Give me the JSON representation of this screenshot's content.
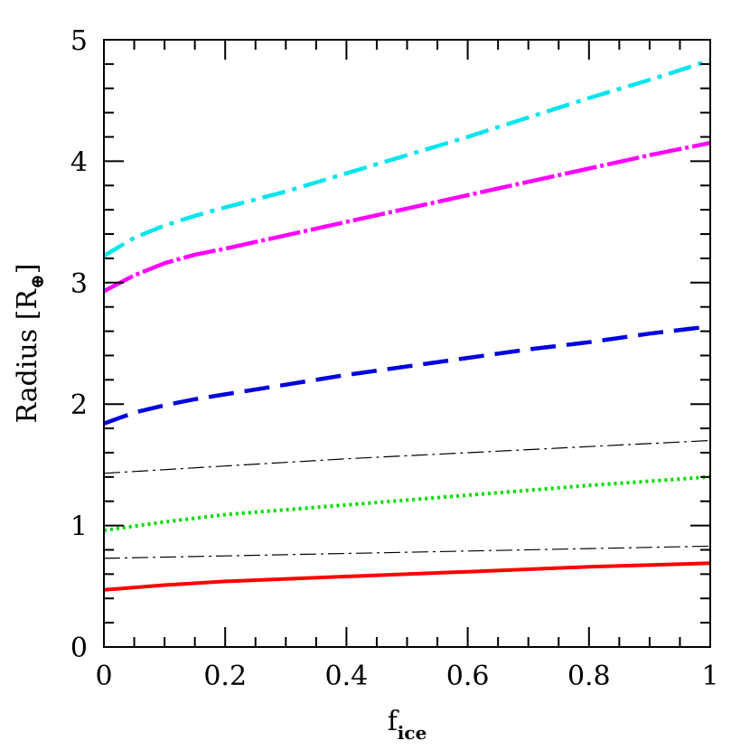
{
  "chart_data": {
    "type": "line",
    "xlabel": "f",
    "xlabel_subscript": "ice",
    "ylabel": "Radius [R",
    "ylabel_symbol": "⊕",
    "ylabel_close": "]",
    "xlim": [
      0,
      1
    ],
    "ylim": [
      0,
      5
    ],
    "xticks": [
      0,
      0.2,
      0.4,
      0.6,
      0.8,
      1
    ],
    "xtick_labels": [
      "0",
      "0.2",
      "0.4",
      "0.6",
      "0.8",
      "1"
    ],
    "yticks": [
      0,
      1,
      2,
      3,
      4,
      5
    ],
    "ytick_labels": [
      "0",
      "1",
      "2",
      "3",
      "4",
      "5"
    ],
    "series": [
      {
        "color": "#ff0000",
        "style": "solid",
        "x": [
          0,
          0.1,
          0.2,
          0.4,
          0.6,
          0.8,
          1.0
        ],
        "y": [
          0.47,
          0.51,
          0.54,
          0.58,
          0.62,
          0.66,
          0.69
        ]
      },
      {
        "color": "#000000",
        "style": "thin-dashdot",
        "x": [
          0,
          0.2,
          0.4,
          0.6,
          0.8,
          1.0
        ],
        "y": [
          0.73,
          0.75,
          0.77,
          0.79,
          0.81,
          0.83
        ]
      },
      {
        "color": "#00dd00",
        "style": "dotted",
        "x": [
          0,
          0.1,
          0.2,
          0.4,
          0.6,
          0.8,
          1.0
        ],
        "y": [
          0.96,
          1.03,
          1.09,
          1.17,
          1.25,
          1.33,
          1.4
        ]
      },
      {
        "color": "#000000",
        "style": "thin-dashdot",
        "x": [
          0,
          0.2,
          0.4,
          0.6,
          0.8,
          1.0
        ],
        "y": [
          1.43,
          1.49,
          1.55,
          1.6,
          1.65,
          1.7
        ]
      },
      {
        "color": "#0000dd",
        "style": "long-dash",
        "x": [
          0,
          0.05,
          0.1,
          0.15,
          0.2,
          0.3,
          0.4,
          0.5,
          0.6,
          0.7,
          0.8,
          0.9,
          1.0
        ],
        "y": [
          1.84,
          1.93,
          1.99,
          2.04,
          2.08,
          2.16,
          2.24,
          2.31,
          2.38,
          2.45,
          2.51,
          2.58,
          2.64
        ]
      },
      {
        "color": "#ff00ff",
        "style": "dash-dot-white",
        "x": [
          0,
          0.05,
          0.1,
          0.15,
          0.2,
          0.3,
          0.4,
          0.5,
          0.6,
          0.7,
          0.8,
          0.9,
          1.0
        ],
        "y": [
          2.93,
          3.06,
          3.16,
          3.23,
          3.28,
          3.39,
          3.5,
          3.61,
          3.72,
          3.83,
          3.94,
          4.05,
          4.15
        ]
      },
      {
        "color": "#00e5ee",
        "style": "dash-dot",
        "x": [
          0,
          0.05,
          0.1,
          0.15,
          0.2,
          0.3,
          0.4,
          0.5,
          0.6,
          0.7,
          0.8,
          0.9,
          1.0
        ],
        "y": [
          3.22,
          3.37,
          3.47,
          3.55,
          3.62,
          3.75,
          3.9,
          4.05,
          4.2,
          4.36,
          4.52,
          4.67,
          4.83
        ]
      }
    ],
    "grid": false,
    "minor_ticks": true
  }
}
